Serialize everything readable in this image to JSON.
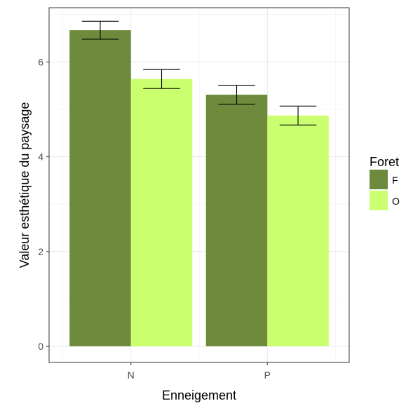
{
  "chart_data": {
    "type": "bar",
    "xlabel": "Enneigement",
    "ylabel": "Valeur esthétique du paysage",
    "categories": [
      "N",
      "P"
    ],
    "ylim": [
      0,
      7
    ],
    "yticks": [
      0,
      2,
      4,
      6
    ],
    "grid": true,
    "legend": {
      "title": "Foret",
      "placement": "right"
    },
    "series": [
      {
        "name": "F",
        "color": "#6e8b3d",
        "values": [
          6.67,
          5.31
        ],
        "error_low": [
          6.48,
          5.11
        ],
        "error_high": [
          6.86,
          5.51
        ]
      },
      {
        "name": "O",
        "color": "#caff70",
        "values": [
          5.64,
          4.87
        ],
        "error_low": [
          5.44,
          4.67
        ],
        "error_high": [
          5.84,
          5.07
        ]
      }
    ]
  }
}
